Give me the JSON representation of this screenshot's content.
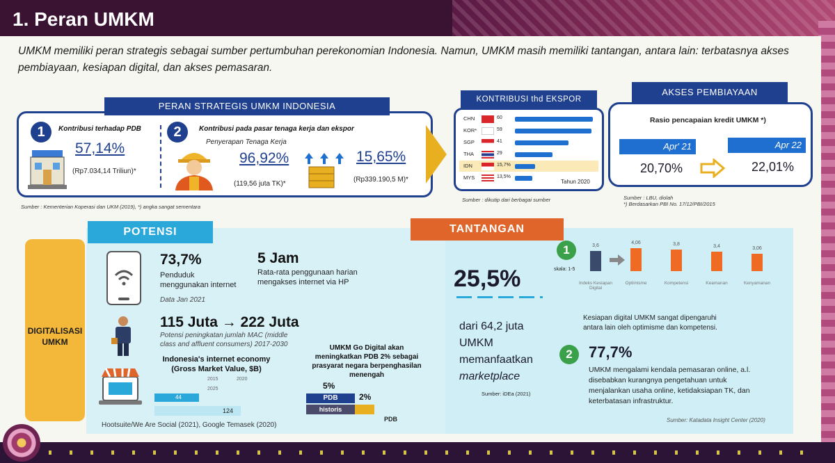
{
  "title": "1. Peran UMKM",
  "intro": "UMKM memiliki peran strategis sebagai sumber pertumbuhan perekonomian Indonesia. Namun, UMKM masih memiliki tantangan, antara lain: terbatasnya akses pembiayaan, kesiapan digital, dan akses pemasaran.",
  "peran": {
    "header": "PERAN STRATEGIS UMKM INDONESIA",
    "item1": {
      "num": "1",
      "label": "Kontribusi terhadap PDB",
      "value": "57,14%",
      "sub": "(Rp7.034,14 Triliun)*"
    },
    "item2": {
      "num": "2",
      "label": "Kontribusi pada pasar tenaga kerja dan ekspor",
      "sub_label": "Penyerapan Tenaga Kerja",
      "value": "96,92%",
      "value_sub": "(119,56 juta TK)*",
      "value2": "15,65%",
      "value2_sub": "(Rp339.190,5 M)*"
    },
    "source": "Sumber : Kementerian Koperasi dan UKM (2019), *) angka sangat sementara"
  },
  "ekspor": {
    "header": "KONTRIBUSI thd EKSPOR",
    "rows": [
      {
        "country": "CHN",
        "value": "60",
        "bar": 60,
        "flag": "china"
      },
      {
        "country": "KOR*",
        "value": "59",
        "bar": 59,
        "flag": "korea"
      },
      {
        "country": "SGP",
        "value": "41",
        "bar": 41,
        "flag": "singapore"
      },
      {
        "country": "THA",
        "value": "29",
        "bar": 29,
        "flag": "thailand"
      },
      {
        "country": "IDN",
        "value": "15,7%",
        "bar": 15.7,
        "flag": "indonesia"
      },
      {
        "country": "MYS",
        "value": "13,5%",
        "bar": 13.5,
        "flag": "malaysia"
      }
    ],
    "year": "Tahun 2020",
    "source": "Sumber : dikutip dari berbagai sumber"
  },
  "pembiayaan": {
    "header": "AKSES PEMBIAYAAN",
    "subtitle": "Rasio pencapaian kredit UMKM *)",
    "from_label": "Apr' 21",
    "from_value": "20,70%",
    "to_label": "Apr 22",
    "to_value": "22,01%",
    "source1": "Sumber : LBU, diolah",
    "source2": "*) Berdasarkan PBI No. 17/12/PBI/2015"
  },
  "potensi": {
    "ribbon": "POTENSI",
    "side_tab_1": "DIGITALISASI",
    "side_tab_2": "UMKM",
    "stat1": {
      "value": "73,7%",
      "text1": "Penduduk",
      "text2": "menggunakan internet",
      "note": "Data Jan 2021"
    },
    "stat2": {
      "value": "5 Jam",
      "text1": "Rata-rata penggunaan harian",
      "text2": "mengakses internet via HP"
    },
    "stat3": {
      "value": "115 Juta → 222 Juta",
      "text1": "Potensi peningkatan jumlah MAC (middle",
      "text2": "class and affluent consumers) 2017-2030"
    },
    "economy": {
      "title1": "Indonesia's internet economy",
      "title2": "(Gross Market Value, $B)",
      "legend1": "2015",
      "legend2": "2020",
      "legend3": "2025",
      "val1": "44",
      "val2": "124"
    },
    "gdp": {
      "title1": "UMKM Go Digital akan",
      "title2": "meningkatkan PDB 2% sebagai",
      "title3": "prasyarat negara berpenghasilan",
      "title4": "menengah",
      "pct5": "5%",
      "pdb_label": "PDB",
      "historis_label": "historis",
      "pct2": "2%",
      "pdb_end": "PDB"
    },
    "source": "Hootsuite/We Are Social (2021), Google Temasek (2020)"
  },
  "tantangan": {
    "ribbon": "TANTANGAN",
    "big_value": "25,5%",
    "line1": "dari 64,2 juta",
    "line2": "UMKM",
    "line3": "memanfaatkan",
    "line4": "marketplace",
    "source_idea": "Sumber: iDEa (2021)",
    "item1": {
      "num": "1",
      "scale": "skala: 1-5",
      "bars": [
        {
          "label": "Indeks Kesiapan Digital",
          "value": "3,6",
          "v": 3.6
        },
        {
          "label": "Optimisme",
          "value": "4,06",
          "v": 4.06
        },
        {
          "label": "Kompetensi",
          "value": "3,8",
          "v": 3.8
        },
        {
          "label": "Keamanan",
          "value": "3,4",
          "v": 3.4
        },
        {
          "label": "Kenyamanan",
          "value": "3,06",
          "v": 3.06
        }
      ],
      "text1": "Kesiapan digital UMKM sangat dipengaruhi",
      "text2": "antara lain oleh optimisme dan kompetensi."
    },
    "item2": {
      "num": "2",
      "value": "77,7%",
      "text1": "UMKM mengalami kendala pemasaran online, a.l.",
      "text2": "disebabkan kurangnya pengetahuan untuk",
      "text3": "menjalankan usaha online, ketidaksiapan TK, dan",
      "text4": "keterbatasan infrastruktur."
    },
    "source": "Sumber: Katadata Insight Center (2020)"
  }
}
